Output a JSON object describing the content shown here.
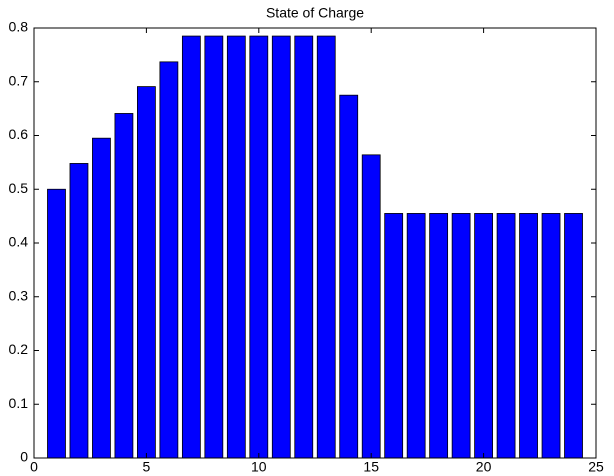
{
  "chart_data": {
    "type": "bar",
    "title": "State of Charge",
    "x": [
      1,
      2,
      3,
      4,
      5,
      6,
      7,
      8,
      9,
      10,
      11,
      12,
      13,
      14,
      15,
      16,
      17,
      18,
      19,
      20,
      21,
      22,
      23,
      24
    ],
    "values": [
      0.5,
      0.548,
      0.595,
      0.641,
      0.691,
      0.737,
      0.785,
      0.785,
      0.785,
      0.785,
      0.785,
      0.785,
      0.785,
      0.675,
      0.564,
      0.455,
      0.455,
      0.455,
      0.455,
      0.455,
      0.455,
      0.455,
      0.455,
      0.455
    ],
    "color": "#0000ff",
    "xlim": [
      0,
      25
    ],
    "xticks": [
      0,
      5,
      10,
      15,
      20,
      25
    ],
    "ylim": [
      0,
      0.8
    ],
    "yticks": [
      0,
      0.1,
      0.2,
      0.3,
      0.4,
      0.5,
      0.6,
      0.7,
      0.8
    ],
    "grid": false
  }
}
